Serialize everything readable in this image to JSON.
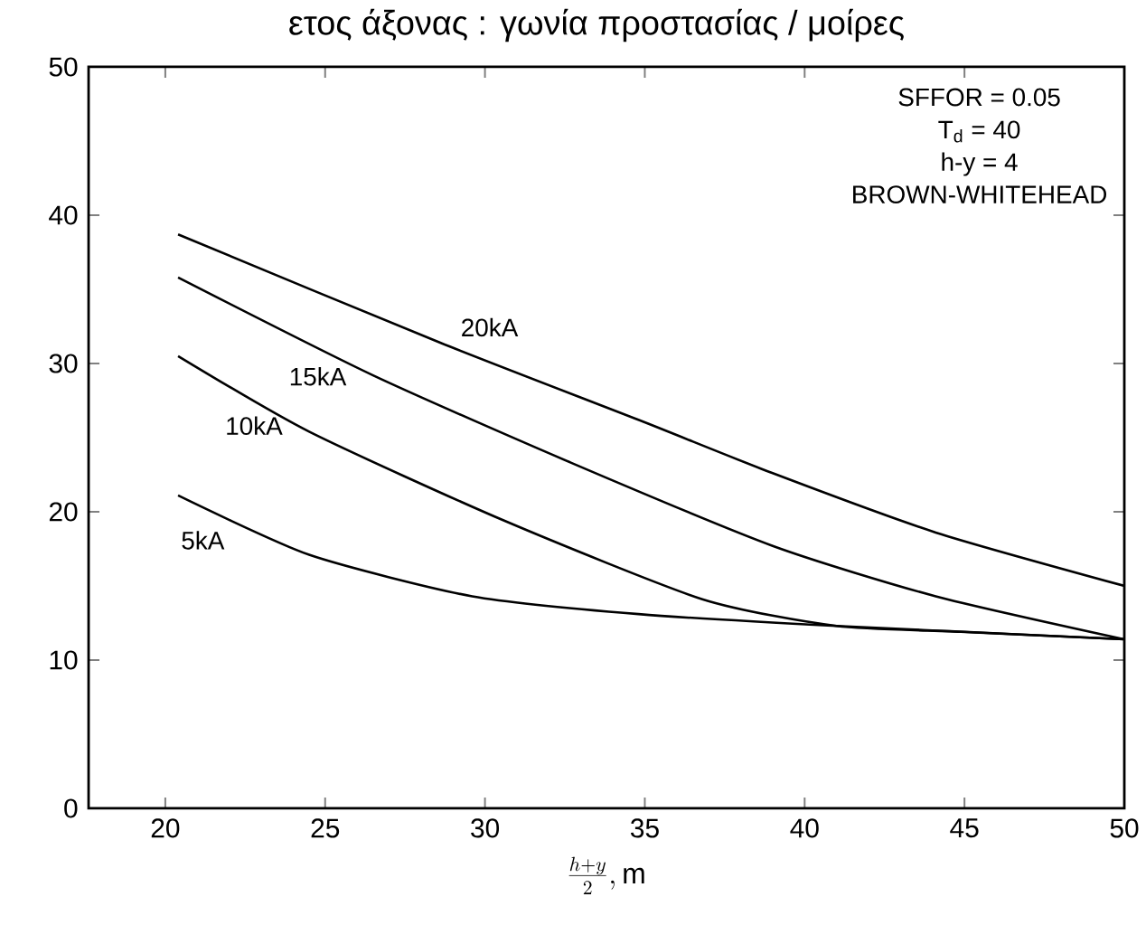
{
  "chart_data": {
    "type": "line",
    "title": "ετος άξονας : γωνία προστασίας / μοίρες",
    "xlabel": "\\frac{h+y}{2}, \\mathrm{m}",
    "xlim": [
      17.6,
      50
    ],
    "xticks": [
      20,
      25,
      30,
      35,
      40,
      45,
      50
    ],
    "ylim": [
      0,
      50
    ],
    "yticks": [
      0,
      10,
      20,
      30,
      40,
      50
    ],
    "grid": false,
    "marker": "none",
    "line_style": "solid",
    "series": [
      {
        "name": "5kA",
        "color": "#000000",
        "x": [
          20.4,
          24.5,
          29.6,
          34.8,
          41,
          50
        ],
        "values": [
          21.1,
          17.1,
          14.3,
          13.1,
          12.3,
          11.4
        ]
      },
      {
        "name": "10kA",
        "color": "#000000",
        "x": [
          20.4,
          24.5,
          30.6,
          36.8,
          41,
          45,
          50
        ],
        "values": [
          30.5,
          25.4,
          19.4,
          14.1,
          12.3,
          11.9,
          11.4
        ]
      },
      {
        "name": "15kA",
        "color": "#000000",
        "x": [
          20.4,
          26.5,
          32.7,
          39.0,
          44.1,
          50
        ],
        "values": [
          35.8,
          29.2,
          23.3,
          17.7,
          14.3,
          11.4
        ]
      },
      {
        "name": "20kA",
        "color": "#000000",
        "x": [
          20.4,
          28.6,
          34.8,
          39.0,
          44.1,
          50
        ],
        "values": [
          38.7,
          31.4,
          26.2,
          22.6,
          18.6,
          15.0
        ]
      }
    ],
    "annotations": [
      "SFFOR = 0.05",
      "T$_{d}$ = 40",
      "h-y = 4",
      "BROWN-WHITEHEAD"
    ]
  }
}
